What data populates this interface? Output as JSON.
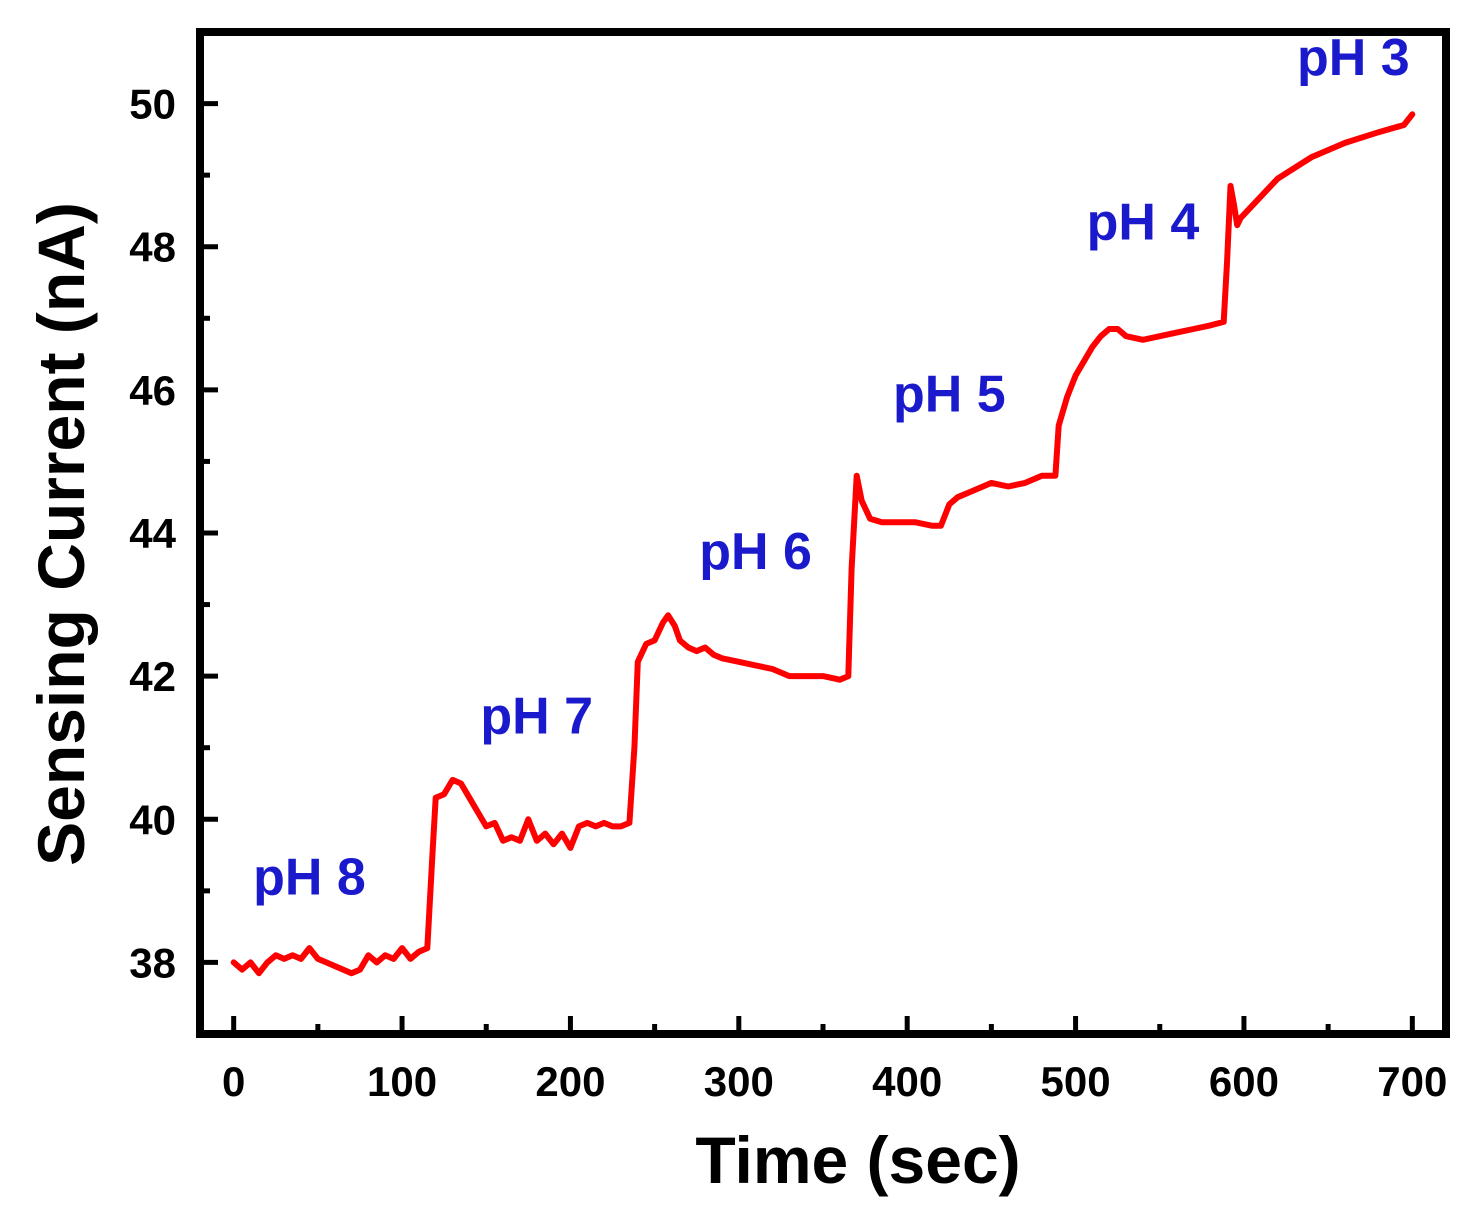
{
  "chart_data": {
    "type": "line",
    "title": "",
    "xlabel": "Time (sec)",
    "ylabel": "Sensing Current (nA)",
    "xlim": [
      -20,
      720
    ],
    "ylim": [
      37,
      51
    ],
    "xticks": [
      0,
      100,
      200,
      300,
      400,
      500,
      600,
      700
    ],
    "xtick_labels": [
      "0",
      "100",
      "200",
      "300",
      "400",
      "500",
      "600",
      "700"
    ],
    "yticks": [
      38,
      40,
      42,
      44,
      46,
      48,
      50
    ],
    "ytick_labels": [
      "38",
      "40",
      "42",
      "44",
      "46",
      "48",
      "50"
    ],
    "grid": false,
    "series": [
      {
        "name": "Sensing Current",
        "color": "#ff0000",
        "x": [
          0,
          5,
          10,
          15,
          20,
          25,
          30,
          35,
          40,
          45,
          50,
          55,
          60,
          65,
          70,
          75,
          80,
          85,
          90,
          95,
          100,
          105,
          110,
          115,
          118,
          120,
          125,
          130,
          135,
          140,
          145,
          150,
          155,
          160,
          165,
          170,
          175,
          180,
          185,
          190,
          195,
          200,
          205,
          210,
          215,
          220,
          225,
          230,
          235,
          238,
          240,
          245,
          250,
          255,
          258,
          262,
          265,
          270,
          275,
          280,
          285,
          290,
          300,
          310,
          320,
          330,
          340,
          350,
          360,
          365,
          367,
          370,
          373,
          378,
          385,
          395,
          405,
          415,
          420,
          425,
          430,
          440,
          450,
          460,
          470,
          480,
          488,
          490,
          495,
          500,
          505,
          510,
          515,
          520,
          525,
          530,
          540,
          550,
          560,
          570,
          580,
          588,
          590,
          592,
          594,
          596,
          598,
          610,
          620,
          640,
          660,
          680,
          695,
          700
        ],
        "y": [
          38.0,
          37.9,
          38.0,
          37.85,
          38.0,
          38.1,
          38.05,
          38.1,
          38.05,
          38.2,
          38.05,
          38.0,
          37.95,
          37.9,
          37.85,
          37.9,
          38.1,
          38.0,
          38.1,
          38.05,
          38.2,
          38.05,
          38.15,
          38.2,
          39.5,
          40.3,
          40.35,
          40.55,
          40.5,
          40.3,
          40.1,
          39.9,
          39.95,
          39.7,
          39.75,
          39.7,
          40.0,
          39.7,
          39.8,
          39.65,
          39.8,
          39.6,
          39.9,
          39.95,
          39.9,
          39.95,
          39.9,
          39.9,
          39.95,
          41.0,
          42.2,
          42.45,
          42.5,
          42.75,
          42.85,
          42.7,
          42.5,
          42.4,
          42.35,
          42.4,
          42.3,
          42.25,
          42.2,
          42.15,
          42.1,
          42.0,
          42.0,
          42.0,
          41.95,
          42.0,
          43.5,
          44.8,
          44.45,
          44.2,
          44.15,
          44.15,
          44.15,
          44.1,
          44.1,
          44.4,
          44.5,
          44.6,
          44.7,
          44.65,
          44.7,
          44.8,
          44.8,
          45.5,
          45.9,
          46.2,
          46.4,
          46.6,
          46.75,
          46.85,
          46.85,
          46.75,
          46.7,
          46.75,
          46.8,
          46.85,
          46.9,
          46.95,
          47.8,
          48.85,
          48.6,
          48.3,
          48.4,
          48.7,
          48.95,
          49.25,
          49.45,
          49.6,
          49.7,
          49.85
        ]
      }
    ],
    "annotations": [
      {
        "text": "pH 8",
        "x": 45,
        "y": 38.95,
        "color": "#1a1acc"
      },
      {
        "text": "pH 7",
        "x": 180,
        "y": 41.2,
        "color": "#1a1acc"
      },
      {
        "text": "pH 6",
        "x": 310,
        "y": 43.5,
        "color": "#1a1acc"
      },
      {
        "text": "pH 5",
        "x": 425,
        "y": 45.7,
        "color": "#1a1acc"
      },
      {
        "text": "pH 4",
        "x": 540,
        "y": 48.1,
        "color": "#1a1acc"
      },
      {
        "text": "pH 3",
        "x": 665,
        "y": 50.4,
        "color": "#1a1acc"
      }
    ]
  }
}
